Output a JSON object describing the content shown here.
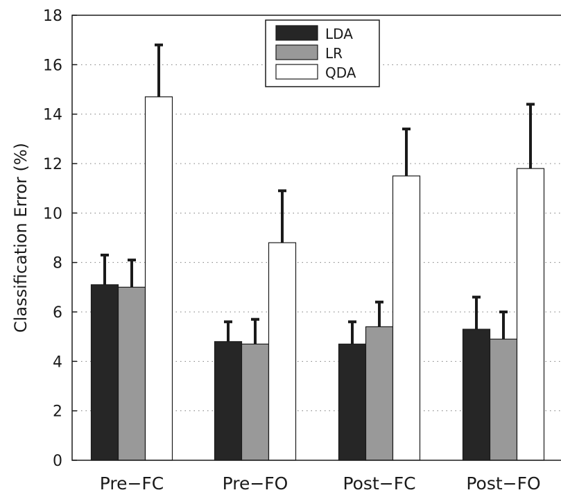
{
  "chart_data": {
    "type": "bar",
    "categories": [
      "Pre−FC",
      "Pre−FO",
      "Post−FC",
      "Post−FO"
    ],
    "series": [
      {
        "name": "LDA",
        "values": [
          7.1,
          4.8,
          4.7,
          5.3
        ],
        "errors": [
          1.2,
          0.8,
          0.9,
          1.3
        ],
        "color": "#262626"
      },
      {
        "name": "LR",
        "values": [
          7.0,
          4.7,
          5.4,
          4.9
        ],
        "errors": [
          1.1,
          1.0,
          1.0,
          1.1
        ],
        "color": "#999999"
      },
      {
        "name": "QDA",
        "values": [
          14.7,
          8.8,
          11.5,
          11.8
        ],
        "errors": [
          2.1,
          2.1,
          1.9,
          2.6
        ],
        "color": "#ffffff"
      }
    ],
    "xlabel": "",
    "ylabel": "Classification Error (%)",
    "ylim": [
      0,
      18
    ],
    "yticks": [
      0,
      2,
      4,
      6,
      8,
      10,
      12,
      14,
      16,
      18
    ],
    "grid": "horizontal dotted",
    "legend": "top-center"
  }
}
